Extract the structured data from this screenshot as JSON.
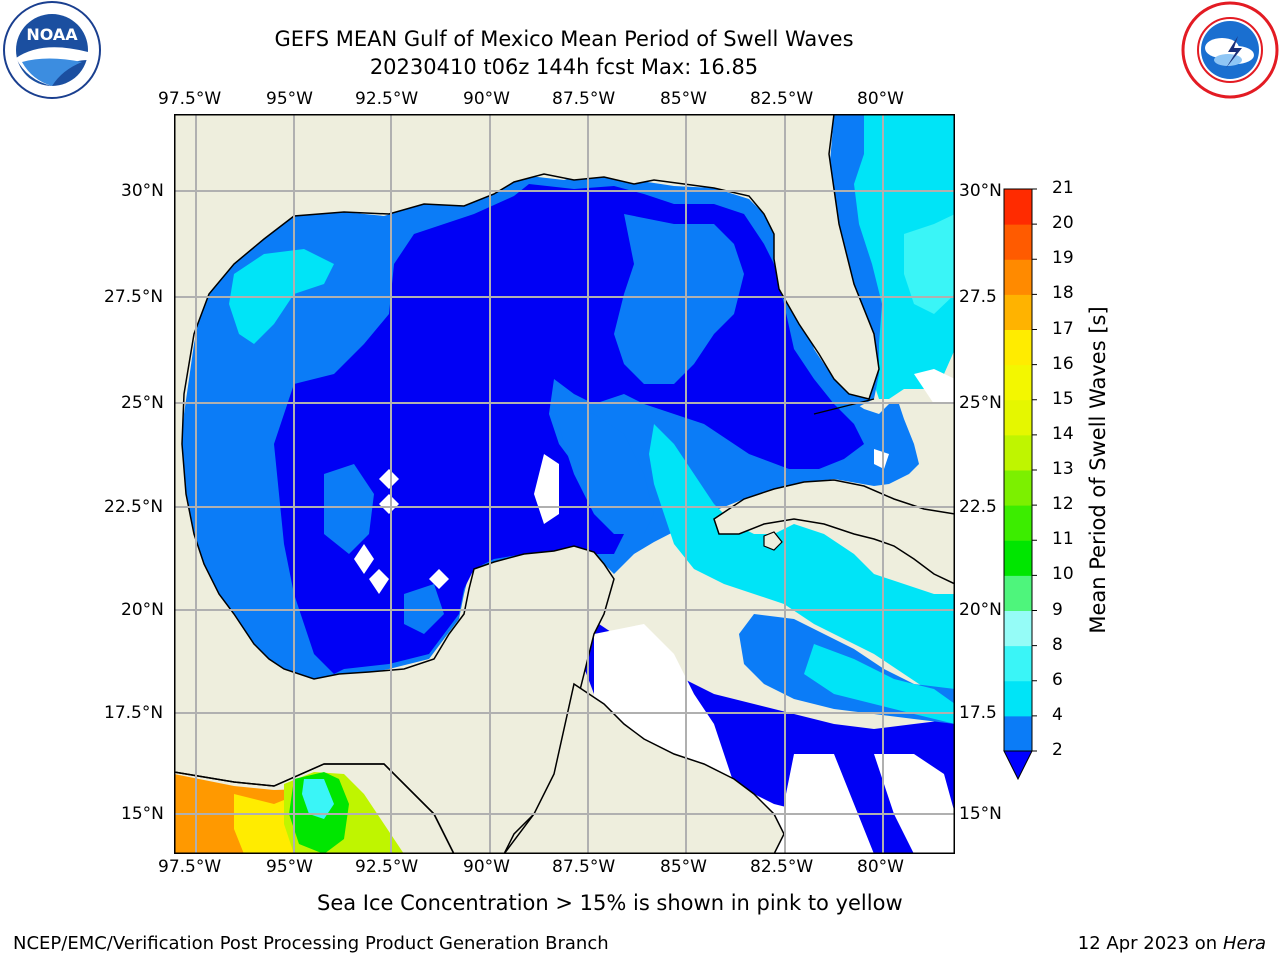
{
  "header": {
    "title_line1": "GEFS MEAN Gulf of Mexico Mean Period of Swell Waves",
    "title_line2": "20230410 t06z 144h fcst   Max: 16.85"
  },
  "logos": {
    "noaa_text": "NOAA",
    "noaa_ring_text": "NATIONAL OCEANIC AND ATMOSPHERIC ADMINISTRATION · U.S. DEPARTMENT OF COMMERCE",
    "nws_ring_text": "NATIONAL WEATHER SERVICE"
  },
  "map": {
    "lon_labels": [
      "97.5°W",
      "95°W",
      "92.5°W",
      "90°W",
      "87.5°W",
      "85°W",
      "82.5°W",
      "80°W"
    ],
    "lat_labels_left": [
      "30°N",
      "27.5°N",
      "25°N",
      "22.5°N",
      "20°N",
      "17.5°N",
      "15°N"
    ],
    "lat_labels_right": [
      "30°N",
      "27.5",
      "25°N",
      "22.5",
      "20°N",
      "17.5",
      "15°N"
    ],
    "colors": {
      "land": "#eeeedd",
      "coast": "#000000",
      "grid": "#b0b0b0"
    }
  },
  "colorbar": {
    "label": "Mean Period of Swell Waves [s]",
    "ticks": [
      "2",
      "4",
      "6",
      "8",
      "9",
      "10",
      "11",
      "12",
      "13",
      "14",
      "15",
      "16",
      "17",
      "18",
      "19",
      "20",
      "21"
    ],
    "colors": [
      "#0b7cf7",
      "#00e4f7",
      "#3af5f7",
      "#95fcf7",
      "#4ef57c",
      "#00e600",
      "#3ced00",
      "#7cf000",
      "#bff500",
      "#e5f700",
      "#f3f700",
      "#ffec00",
      "#ffb300",
      "#ff8a00",
      "#ff5b00",
      "#ff2b00"
    ],
    "extend_color": "#0000ff"
  },
  "footer": {
    "note": "Sea Ice Concentration > 15% is shown in pink to yellow",
    "credit": "NCEP/EMC/Verification Post Processing Product Generation Branch",
    "date": "12 Apr 2023 on",
    "machine": "Hera"
  }
}
